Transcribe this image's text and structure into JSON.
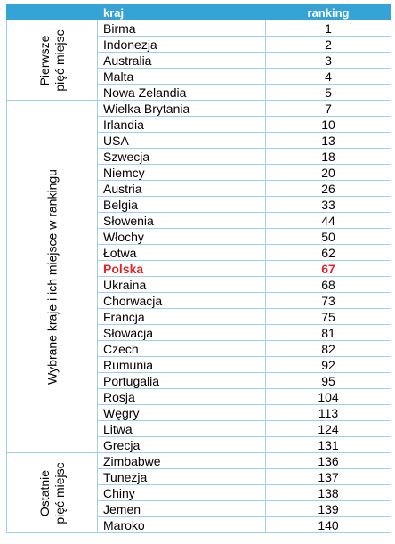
{
  "header": {
    "group_label": "",
    "name_label": "kraj",
    "rank_label": "ranking"
  },
  "highlight_color": "#e0262c",
  "header_color": "#35a3d6",
  "groups": [
    {
      "label_line1": "Pierwsze",
      "label_line2": "pięć miejsc",
      "rows": [
        {
          "country": "Birma",
          "rank": "1"
        },
        {
          "country": "Indonezja",
          "rank": "2"
        },
        {
          "country": "Australia",
          "rank": "3"
        },
        {
          "country": "Malta",
          "rank": "4"
        },
        {
          "country": "Nowa Zelandia",
          "rank": "5"
        }
      ]
    },
    {
      "label_line1": "Wybrane kraje i ich miejsce w rankingu",
      "label_line2": "",
      "rows": [
        {
          "country": "Wielka Brytania",
          "rank": "7"
        },
        {
          "country": "Irlandia",
          "rank": "10"
        },
        {
          "country": "USA",
          "rank": "13"
        },
        {
          "country": "Szwecja",
          "rank": "18"
        },
        {
          "country": "Niemcy",
          "rank": "20"
        },
        {
          "country": "Austria",
          "rank": "26"
        },
        {
          "country": "Belgia",
          "rank": "33"
        },
        {
          "country": "Słowenia",
          "rank": "44"
        },
        {
          "country": "Włochy",
          "rank": "50"
        },
        {
          "country": "Łotwa",
          "rank": "62"
        },
        {
          "country": "Polska",
          "rank": "67",
          "highlight": true
        },
        {
          "country": "Ukraina",
          "rank": "68"
        },
        {
          "country": "Chorwacja",
          "rank": "73"
        },
        {
          "country": "Francja",
          "rank": "75"
        },
        {
          "country": "Słowacja",
          "rank": "81"
        },
        {
          "country": "Czech",
          "rank": "82"
        },
        {
          "country": "Rumunia",
          "rank": "92"
        },
        {
          "country": "Portugalia",
          "rank": "95"
        },
        {
          "country": "Rosja",
          "rank": "104"
        },
        {
          "country": "Węgry",
          "rank": "113"
        },
        {
          "country": "Litwa",
          "rank": "124"
        },
        {
          "country": "Grecja",
          "rank": "131"
        }
      ]
    },
    {
      "label_line1": "Ostatnie",
      "label_line2": "pięć miejsc",
      "rows": [
        {
          "country": "Zimbabwe",
          "rank": "136"
        },
        {
          "country": "Tunezja",
          "rank": "137"
        },
        {
          "country": "Chiny",
          "rank": "138"
        },
        {
          "country": "Jemen",
          "rank": "139"
        },
        {
          "country": "Maroko",
          "rank": "140"
        }
      ]
    }
  ]
}
